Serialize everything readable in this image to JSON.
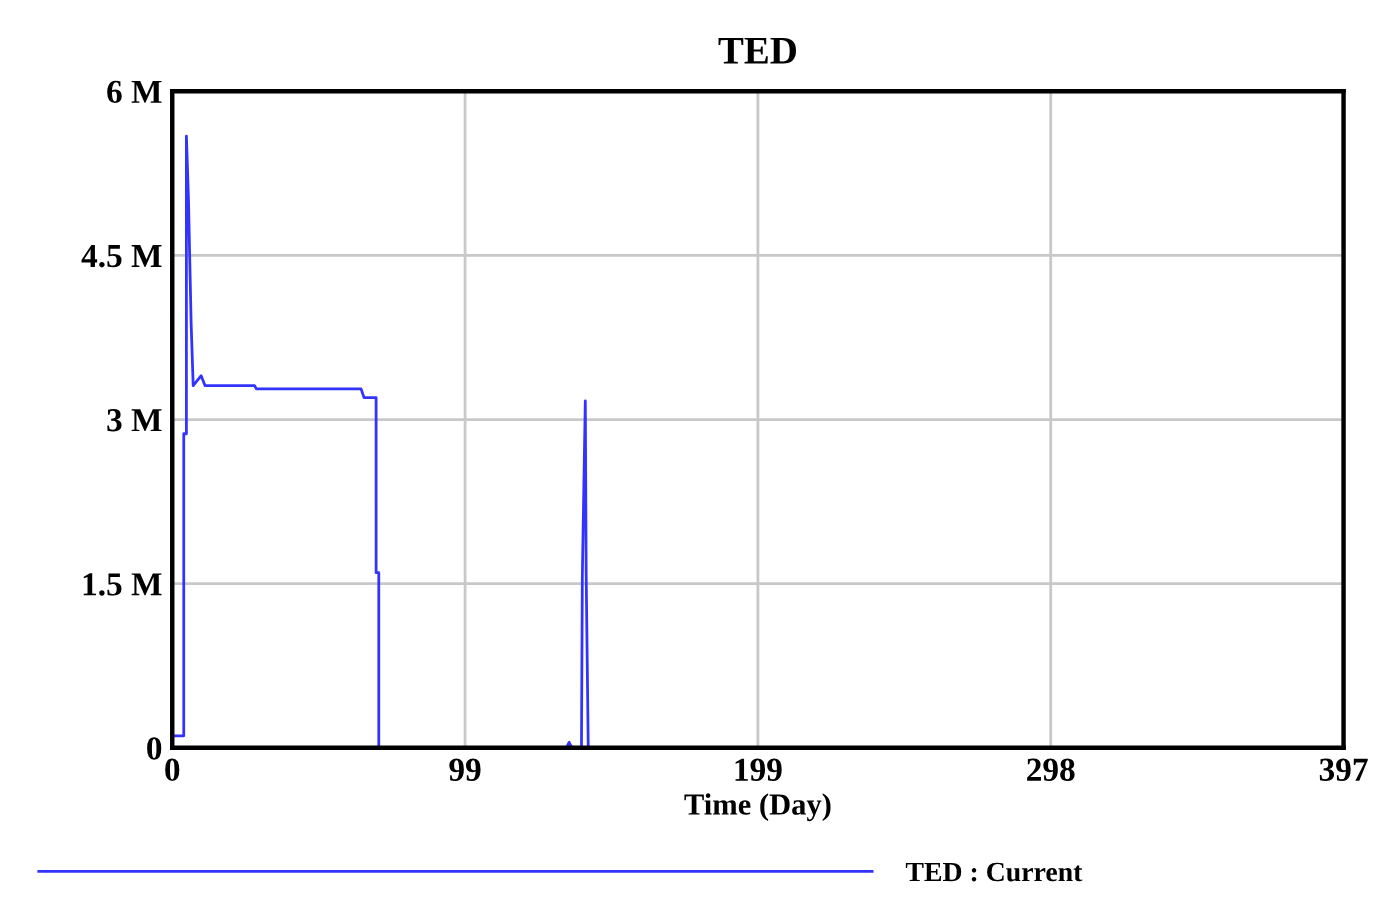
{
  "chart_data": {
    "type": "line",
    "title": "TED",
    "xlabel": "Time (Day)",
    "xlim": [
      0,
      397
    ],
    "xticks": [
      0,
      {
        "value": 99.25,
        "label": "99"
      },
      {
        "value": 198.5,
        "label": "199"
      },
      {
        "value": 297.75,
        "label": "298"
      },
      397
    ],
    "ylim": [
      0,
      6000000
    ],
    "yticks": [
      {
        "value": 0,
        "label": "0"
      },
      {
        "value": 1500000,
        "label": "1.5 M"
      },
      {
        "value": 3000000,
        "label": "3 M"
      },
      {
        "value": 4500000,
        "label": "4.5 M"
      },
      {
        "value": 6000000,
        "label": "6 M"
      }
    ],
    "grid": true,
    "legend": "bottom",
    "line_style": "solid",
    "marker": "none",
    "series": [
      {
        "name": "TED : Current",
        "color": "#3333ff",
        "x": [
          0,
          3.9,
          3.9,
          4.8,
          4.8,
          5.5,
          5.5,
          6.4,
          6.4,
          7.1,
          9.8,
          11.1,
          27.9,
          28.5,
          64,
          65,
          69.1,
          69.1,
          70,
          70,
          133.6,
          134.5,
          135.5,
          138.7,
          139,
          140,
          140.3,
          141,
          397
        ],
        "values": [
          110000,
          110000,
          2870000,
          2870000,
          5590000,
          5010000,
          5010000,
          3880000,
          3880000,
          3310000,
          3400000,
          3310000,
          3310000,
          3280000,
          3280000,
          3200000,
          3200000,
          1600000,
          1600000,
          0,
          0,
          50000,
          0,
          0,
          1580000,
          3170000,
          1580000,
          0,
          0
        ]
      }
    ]
  }
}
